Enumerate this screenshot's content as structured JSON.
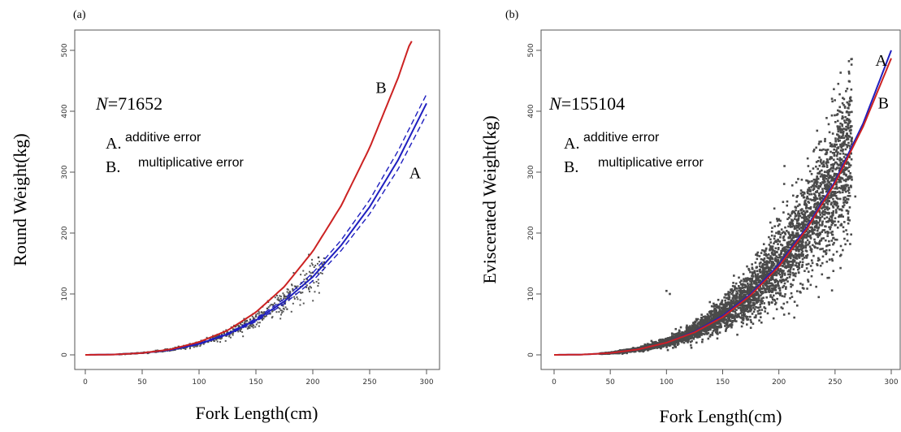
{
  "chart_data": [
    {
      "type": "scatter",
      "panel_label": "(a)",
      "xlabel": "Fork Length(cm)",
      "ylabel": "Round Weight(kg)",
      "xlim": [
        0,
        300
      ],
      "ylim": [
        0,
        500
      ],
      "xticks": [
        0,
        50,
        100,
        150,
        200,
        250,
        300
      ],
      "yticks": [
        0,
        100,
        200,
        300,
        400,
        500
      ],
      "grid": false,
      "n_prefix": "N",
      "n_value": "=71652",
      "legend": [
        {
          "key": "A.",
          "text": "additive error"
        },
        {
          "key": "B.",
          "text": "multiplicative error"
        }
      ],
      "curve_labels": [
        {
          "label": "B",
          "x": 260,
          "y": 430
        },
        {
          "label": "A",
          "x": 290,
          "y": 290
        }
      ],
      "series": [
        {
          "name": "A",
          "kind": "fit",
          "color": "#1f1fbf",
          "x": [
            0,
            25,
            50,
            75,
            100,
            125,
            150,
            175,
            200,
            225,
            250,
            275,
            300
          ],
          "y": [
            0,
            0.6,
            3,
            8,
            18,
            34,
            57,
            88,
            128,
            180,
            243,
            320,
            413
          ]
        },
        {
          "name": "A-upper",
          "kind": "ci",
          "color": "#1f1fbf",
          "x": [
            0,
            25,
            50,
            75,
            100,
            125,
            150,
            175,
            200,
            225,
            250,
            275,
            300
          ],
          "y": [
            0,
            0.6,
            3.1,
            8.3,
            18.6,
            35.3,
            59.4,
            92,
            134.5,
            188.5,
            254.5,
            335,
            428
          ]
        },
        {
          "name": "A-lower",
          "kind": "ci",
          "color": "#1f1fbf",
          "x": [
            0,
            25,
            50,
            75,
            100,
            125,
            150,
            175,
            200,
            225,
            250,
            275,
            300
          ],
          "y": [
            0,
            0.6,
            2.9,
            7.7,
            17.3,
            32.7,
            54.6,
            84,
            121.5,
            171.5,
            231.5,
            305,
            395
          ]
        },
        {
          "name": "B",
          "kind": "fit",
          "color": "#cc2222",
          "x": [
            0,
            25,
            50,
            75,
            100,
            125,
            150,
            175,
            200,
            225,
            250,
            275,
            287
          ],
          "y": [
            0,
            0.5,
            3,
            9,
            21,
            40,
            70,
            112,
            170,
            245,
            340,
            455,
            520
          ]
        }
      ],
      "scatter_points": [
        [
          30,
          0.8
        ],
        [
          35,
          1.2
        ],
        [
          40,
          1.8
        ],
        [
          45,
          2.5
        ],
        [
          50,
          3.2
        ],
        [
          55,
          4.1
        ],
        [
          60,
          5.4
        ],
        [
          65,
          6.5
        ],
        [
          70,
          7.8
        ],
        [
          75,
          9.4
        ],
        [
          80,
          11.5
        ],
        [
          85,
          13.2
        ],
        [
          90,
          15.5
        ],
        [
          95,
          18
        ],
        [
          100,
          20.5
        ],
        [
          105,
          23.5
        ],
        [
          110,
          26
        ],
        [
          115,
          30
        ],
        [
          120,
          33
        ],
        [
          125,
          37
        ],
        [
          130,
          42
        ],
        [
          135,
          47
        ],
        [
          140,
          52
        ],
        [
          145,
          58
        ],
        [
          150,
          63
        ],
        [
          155,
          70
        ],
        [
          160,
          76
        ],
        [
          165,
          82
        ],
        [
          170,
          90
        ],
        [
          175,
          96
        ],
        [
          180,
          103
        ],
        [
          185,
          112
        ],
        [
          190,
          118
        ],
        [
          200,
          135
        ],
        [
          205,
          140
        ],
        [
          210,
          152
        ],
        [
          205,
          160
        ],
        [
          55,
          2.8
        ],
        [
          62,
          6.8
        ],
        [
          68,
          5.5
        ],
        [
          72,
          9.1
        ],
        [
          78,
          8.3
        ],
        [
          82,
          13.5
        ],
        [
          88,
          12.1
        ],
        [
          92,
          17.8
        ],
        [
          97,
          15.2
        ],
        [
          102,
          23.1
        ],
        [
          108,
          21.4
        ],
        [
          112,
          29
        ],
        [
          118,
          27.3
        ],
        [
          122,
          35.5
        ],
        [
          128,
          38.2
        ],
        [
          132,
          46.5
        ],
        [
          138,
          48.7
        ],
        [
          142,
          56
        ],
        [
          148,
          60.2
        ]
      ]
    },
    {
      "type": "scatter",
      "panel_label": "(b)",
      "xlabel": "Fork Length(cm)",
      "ylabel": "Eviscerated Weight(kg)",
      "xlim": [
        0,
        300
      ],
      "ylim": [
        0,
        500
      ],
      "xticks": [
        0,
        50,
        100,
        150,
        200,
        250,
        300
      ],
      "yticks": [
        0,
        100,
        200,
        300,
        400,
        500
      ],
      "grid": false,
      "n_prefix": "N",
      "n_value": "=155104",
      "legend": [
        {
          "key": "A.",
          "text": "additive error"
        },
        {
          "key": "B.",
          "text": "multiplicative error"
        }
      ],
      "curve_labels": [
        {
          "label": "A",
          "x": 291,
          "y": 475
        },
        {
          "label": "B",
          "x": 293,
          "y": 405
        }
      ],
      "series": [
        {
          "name": "A",
          "kind": "fit",
          "color": "#1f1fbf",
          "x": [
            0,
            25,
            50,
            75,
            100,
            125,
            150,
            175,
            200,
            225,
            250,
            275,
            300
          ],
          "y": [
            0,
            0.5,
            3,
            9,
            20,
            38,
            64,
            100,
            148,
            210,
            285,
            380,
            500
          ]
        },
        {
          "name": "B",
          "kind": "fit",
          "color": "#cc2222",
          "x": [
            0,
            25,
            50,
            75,
            100,
            125,
            150,
            175,
            200,
            225,
            250,
            275,
            300
          ],
          "y": [
            0,
            0.5,
            3,
            9,
            20,
            37,
            62,
            98,
            145,
            207,
            282,
            375,
            487
          ]
        }
      ],
      "scatter_cloud": {
        "x_range": [
          40,
          265
        ],
        "outliers": [
          [
            100,
            105
          ],
          [
            103,
            100
          ],
          [
            258,
            420
          ],
          [
            262,
            380
          ],
          [
            268,
            260
          ],
          [
            255,
            300
          ],
          [
            120,
            25
          ],
          [
            135,
            40
          ],
          [
            145,
            80
          ],
          [
            160,
            130
          ],
          [
            205,
            310
          ],
          [
            210,
            160
          ],
          [
            240,
            170
          ]
        ]
      }
    }
  ]
}
